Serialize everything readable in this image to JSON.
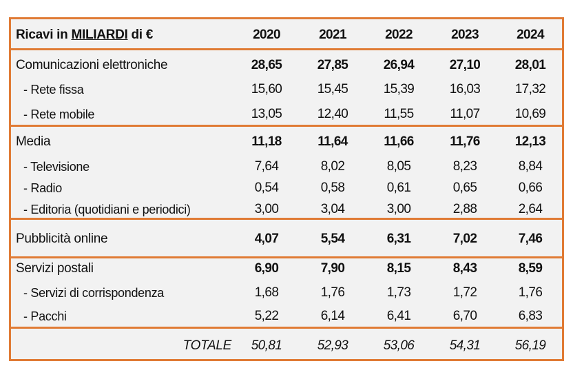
{
  "header": {
    "label_prefix": "Ricavi in ",
    "label_underlined": "MILIARDI",
    "label_suffix": " di €",
    "years": [
      "2020",
      "2021",
      "2022",
      "2023",
      "2024"
    ]
  },
  "rows": [
    {
      "label": "Comunicazioni elettroniche",
      "values": [
        "28,65",
        "27,85",
        "26,94",
        "27,10",
        "28,01"
      ]
    },
    {
      "label": " - Rete fissa",
      "values": [
        "15,60",
        "15,45",
        "15,39",
        "16,03",
        "17,32"
      ]
    },
    {
      "label": " - Rete mobile",
      "values": [
        "13,05",
        "12,40",
        "11,55",
        "11,07",
        "10,69"
      ]
    },
    {
      "label": "Media",
      "values": [
        "11,18",
        "11,64",
        "11,66",
        "11,76",
        "12,13"
      ]
    },
    {
      "label": " - Televisione",
      "values": [
        "7,64",
        "8,02",
        "8,05",
        "8,23",
        "8,84"
      ]
    },
    {
      "label": " - Radio",
      "values": [
        "0,54",
        "0,58",
        "0,61",
        "0,65",
        "0,66"
      ]
    },
    {
      "label": " - Editoria (quotidiani e periodici)",
      "values": [
        "3,00",
        "3,04",
        "3,00",
        "2,88",
        "2,64"
      ]
    },
    {
      "label": "Pubblicità online",
      "values": [
        "4,07",
        "5,54",
        "6,31",
        "7,02",
        "7,46"
      ]
    },
    {
      "label": "Servizi postali",
      "values": [
        "6,90",
        "7,90",
        "8,15",
        "8,43",
        "8,59"
      ]
    },
    {
      "label": " - Servizi di corrispondenza",
      "values": [
        "1,68",
        "1,76",
        "1,73",
        "1,72",
        "1,76"
      ]
    },
    {
      "label": " - Pacchi",
      "values": [
        "5,22",
        "6,14",
        "6,41",
        "6,70",
        "6,83"
      ]
    },
    {
      "label": "TOTALE",
      "values": [
        "50,81",
        "52,93",
        "53,06",
        "54,31",
        "56,19"
      ]
    }
  ],
  "colors": {
    "border": "#e07b35",
    "background": "#f2f2f2"
  }
}
